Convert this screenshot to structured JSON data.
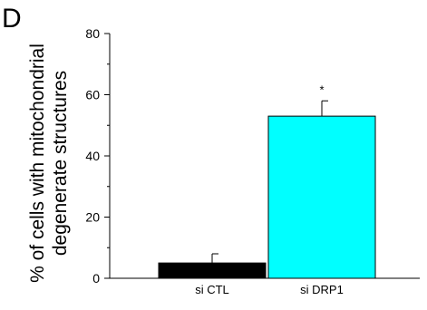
{
  "panel_label": "D",
  "chart_data": {
    "type": "bar",
    "title": "",
    "xlabel": "",
    "ylabel_lines": [
      "% of cells with mitochondrial",
      "degenerate structures"
    ],
    "categories": [
      "si CTL",
      "si DRP1"
    ],
    "values": [
      5,
      53
    ],
    "errors": [
      3,
      5
    ],
    "bar_colors": [
      "#000000",
      "#00FFFF"
    ],
    "annotations": [
      "",
      "*"
    ],
    "ylim": [
      0,
      80
    ],
    "yticks": [
      0,
      20,
      40,
      60,
      80
    ],
    "yticks_minor": [
      10,
      30,
      50,
      70
    ],
    "grid": false,
    "legend": "none"
  }
}
